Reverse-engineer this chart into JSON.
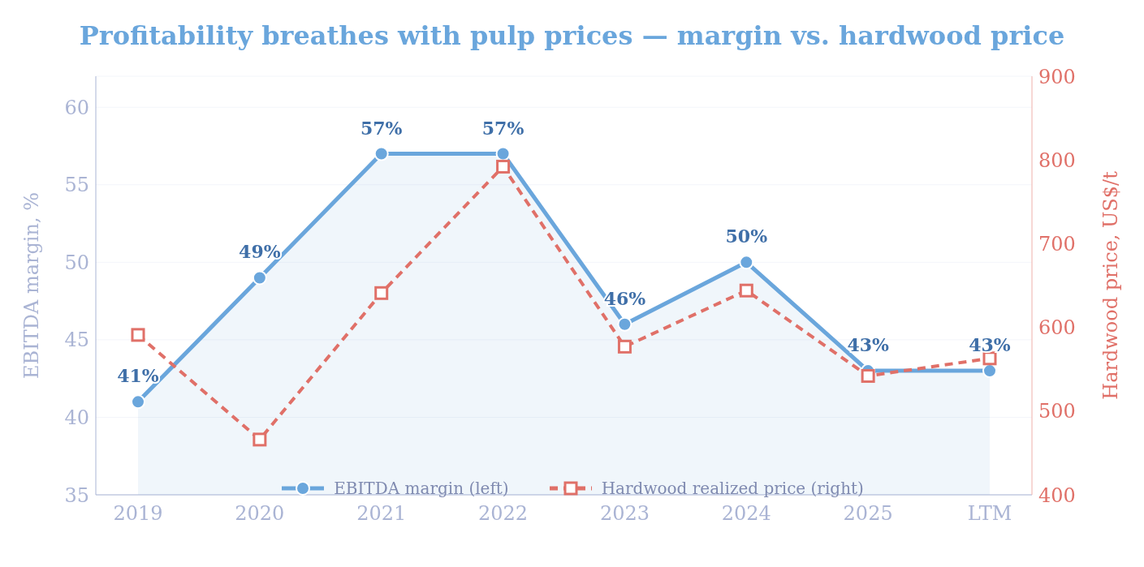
{
  "chart_data": {
    "type": "line",
    "title": "Profitability breathes with pulp prices — margin vs. hardwood price",
    "ylabel": "EBITDA margin, %",
    "y2label": "Hardwood price, US$/t",
    "categories": [
      "2019",
      "2020",
      "2021",
      "2022",
      "2023",
      "2024",
      "2025",
      "LTM"
    ],
    "series": [
      {
        "name": "EBITDA margin (left)",
        "type": "area",
        "color": "#6aa6dc",
        "marker": "circle",
        "line_style": "solid",
        "values": [
          41,
          49,
          57,
          57,
          46,
          50,
          43,
          43
        ],
        "value_labels": [
          "41%",
          "49%",
          "57%",
          "57%",
          "46%",
          "50%",
          "43%",
          "43%"
        ]
      },
      {
        "name": "Hardwood realized price (right)",
        "axis": "y2",
        "color": "#e07068",
        "marker": "square",
        "line_style": "dashed",
        "values": [
          591,
          466,
          641,
          792,
          577,
          644,
          542,
          563
        ]
      }
    ],
    "ylim": [
      35,
      62
    ],
    "yticks": [
      35,
      40,
      45,
      50,
      55,
      60
    ],
    "y2lim": [
      400,
      900
    ],
    "y2ticks": [
      400,
      500,
      600,
      700,
      800,
      900
    ],
    "grid": "y",
    "legend": "bottom"
  }
}
